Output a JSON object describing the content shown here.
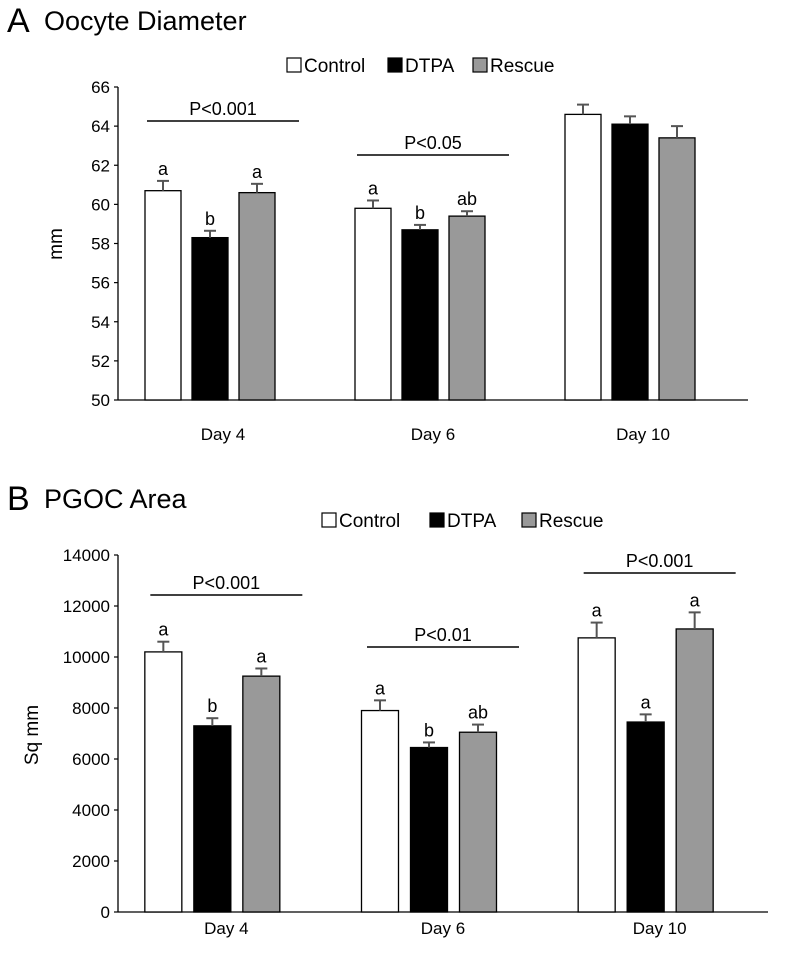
{
  "chart_data": [
    {
      "type": "bar",
      "panel_letter": "A",
      "title": "Oocyte Diameter",
      "ylabel": "mm",
      "xlabel": "",
      "ylim": [
        50,
        66
      ],
      "yticks": [
        50,
        52,
        54,
        56,
        58,
        60,
        62,
        64,
        66
      ],
      "categories": [
        "Day 4",
        "Day 6",
        "Day 10"
      ],
      "series": [
        {
          "name": "Control",
          "color": "#ffffff",
          "values": [
            60.7,
            59.8,
            64.6
          ],
          "errors": [
            0.5,
            0.4,
            0.5
          ],
          "labels": [
            "a",
            "a",
            ""
          ]
        },
        {
          "name": "DTPA",
          "color": "#000000",
          "values": [
            58.3,
            58.7,
            64.1
          ],
          "errors": [
            0.35,
            0.25,
            0.4
          ],
          "labels": [
            "b",
            "b",
            ""
          ]
        },
        {
          "name": "Rescue",
          "color": "#999999",
          "values": [
            60.6,
            59.4,
            63.4
          ],
          "errors": [
            0.45,
            0.25,
            0.6
          ],
          "labels": [
            "a",
            "ab",
            ""
          ]
        }
      ],
      "brackets": [
        {
          "category_index": 0,
          "text": "P<0.001"
        },
        {
          "category_index": 1,
          "text": "P<0.05"
        }
      ]
    },
    {
      "type": "bar",
      "panel_letter": "B",
      "title": "PGOC Area",
      "ylabel": "Sq mm",
      "xlabel": "",
      "ylim": [
        0,
        14000
      ],
      "yticks": [
        0,
        2000,
        4000,
        6000,
        8000,
        10000,
        12000,
        14000
      ],
      "categories": [
        "Day 4",
        "Day 6",
        "Day 10"
      ],
      "series": [
        {
          "name": "Control",
          "color": "#ffffff",
          "values": [
            10200,
            7900,
            10750
          ],
          "errors": [
            400,
            400,
            600
          ],
          "labels": [
            "a",
            "a",
            "a"
          ]
        },
        {
          "name": "DTPA",
          "color": "#000000",
          "values": [
            7300,
            6450,
            7450
          ],
          "errors": [
            300,
            200,
            300
          ],
          "labels": [
            "b",
            "b",
            "a"
          ]
        },
        {
          "name": "Rescue",
          "color": "#999999",
          "values": [
            9250,
            7050,
            11100
          ],
          "errors": [
            300,
            300,
            650
          ],
          "labels": [
            "a",
            "ab",
            "a"
          ]
        }
      ],
      "brackets": [
        {
          "category_index": 0,
          "text": "P<0.001"
        },
        {
          "category_index": 1,
          "text": "P<0.01"
        },
        {
          "category_index": 2,
          "text": "P<0.001"
        }
      ]
    }
  ]
}
